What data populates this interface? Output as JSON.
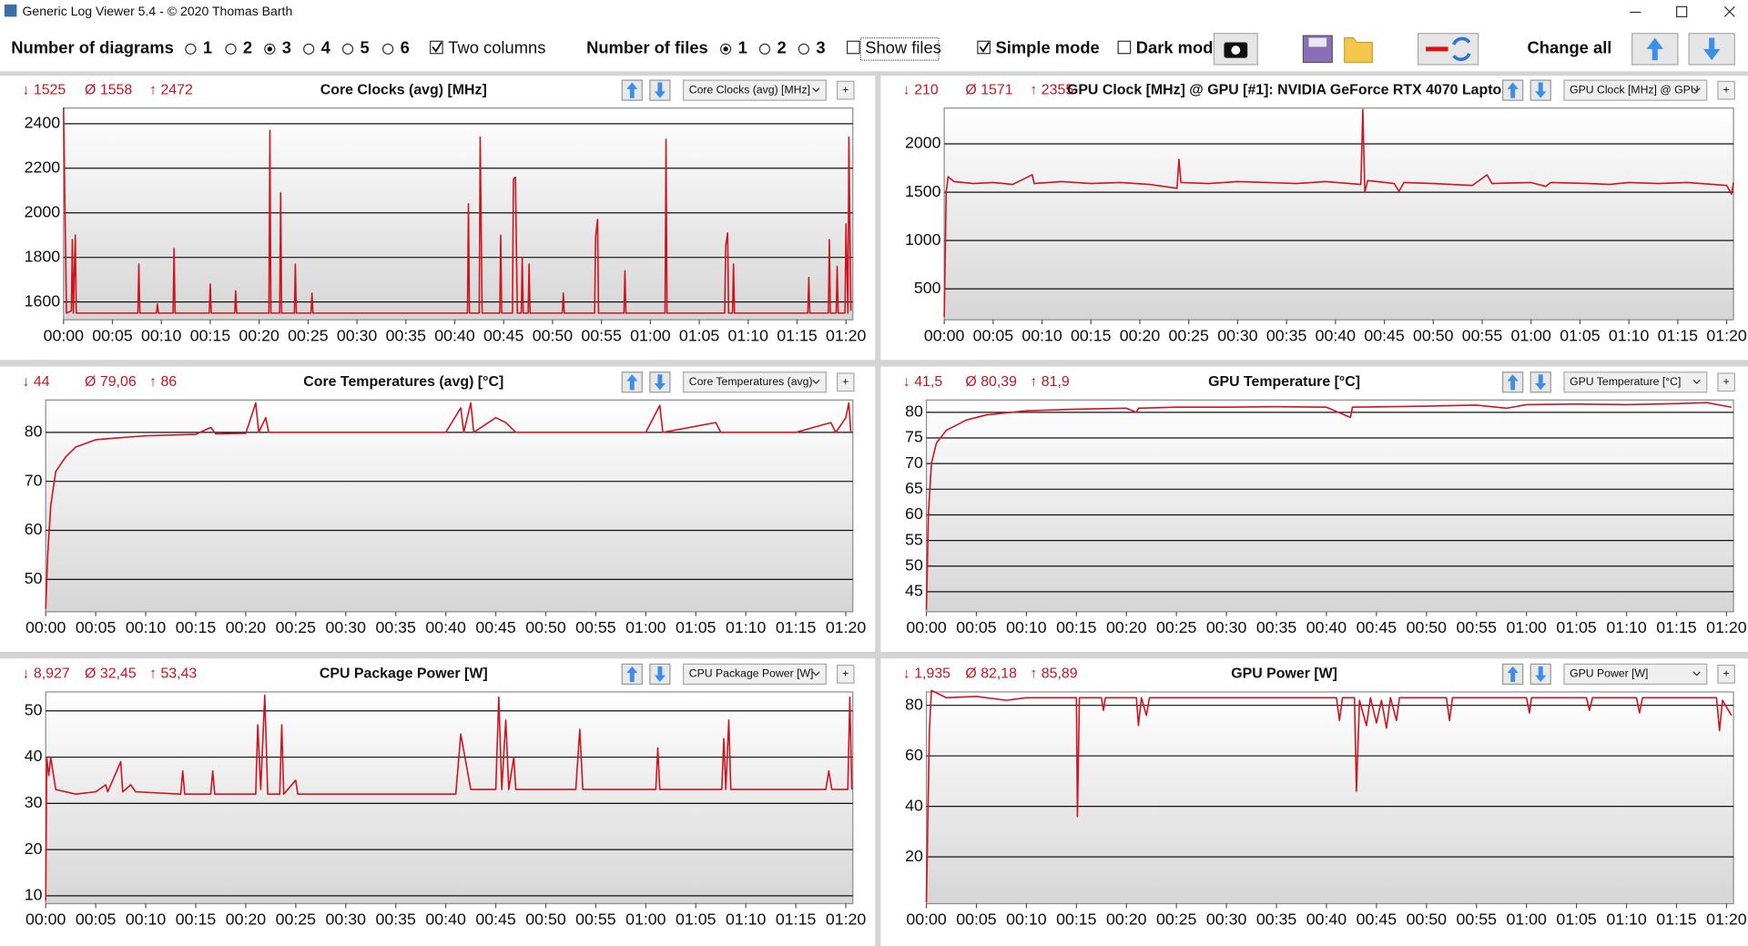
{
  "window": {
    "title": "Generic Log Viewer 5.4 - © 2020 Thomas Barth"
  },
  "toolbar": {
    "diagrams_label": "Number of diagrams",
    "diagram_options": [
      "1",
      "2",
      "3",
      "4",
      "5",
      "6"
    ],
    "two_columns": "Two columns",
    "files_label": "Number of files",
    "file_options": [
      "1",
      "2",
      "3"
    ],
    "show_files": "Show files",
    "simple_mode": "Simple mode",
    "dark_mode": "Dark mod",
    "change_all": "Change all"
  },
  "chart_data": [
    {
      "type": "line",
      "stats": [
        "↓ 1525",
        "Ø 1558",
        "↑ 2472"
      ],
      "title": "Core Clocks (avg) [MHz]",
      "selector": "Core Clocks (avg) [MHz]",
      "add_button": "+",
      "color": "#d0141e",
      "grid": true,
      "x": [
        0,
        0.3,
        0.8,
        0.9,
        1.0,
        1.2,
        1.3,
        7.6,
        7.7,
        7.8,
        9.5,
        9.6,
        9.7,
        11.2,
        11.3,
        11.4,
        14.9,
        15.0,
        15.1,
        17.5,
        17.6,
        17.7,
        21.0,
        21.1,
        21.2,
        22.1,
        22.2,
        22.3,
        23.6,
        23.7,
        23.8,
        25.3,
        25.4,
        25.5,
        41.3,
        41.4,
        41.5,
        42.5,
        42.6,
        42.8,
        44.6,
        44.7,
        44.8,
        45.9,
        46.0,
        46.2,
        46.4,
        46.8,
        46.9,
        47.0,
        47.5,
        47.6,
        47.7,
        51.0,
        51.1,
        51.2,
        54.3,
        54.4,
        54.6,
        54.7,
        57.3,
        57.4,
        57.5,
        61.5,
        61.6,
        61.7,
        67.6,
        67.7,
        67.9,
        68.0,
        68.4,
        68.5,
        68.6,
        76.1,
        76.2,
        76.3,
        78.2,
        78.3,
        78.4,
        79.0,
        79.1,
        79.2,
        79.9,
        80.0,
        80.2,
        80.3,
        80.5
      ],
      "values": [
        2472,
        1550,
        1560,
        1880,
        1550,
        1900,
        1550,
        1550,
        1770,
        1550,
        1550,
        1590,
        1550,
        1550,
        1840,
        1550,
        1550,
        1680,
        1550,
        1550,
        1650,
        1550,
        1550,
        2370,
        1550,
        1550,
        2090,
        1550,
        1550,
        1770,
        1550,
        1550,
        1640,
        1550,
        1550,
        2040,
        1550,
        1550,
        2340,
        1550,
        1550,
        1900,
        1550,
        1550,
        2150,
        2160,
        1550,
        1550,
        1800,
        1550,
        1550,
        1770,
        1550,
        1550,
        1640,
        1550,
        1550,
        1890,
        1970,
        1550,
        1550,
        1740,
        1550,
        1550,
        2330,
        1550,
        1550,
        1850,
        1910,
        1550,
        1550,
        1770,
        1550,
        1550,
        1710,
        1550,
        1550,
        1880,
        1550,
        1550,
        1760,
        1550,
        1550,
        1950,
        1550,
        2340,
        1560
      ],
      "xlim": [
        0,
        80.7
      ],
      "ylim": [
        1520,
        2470
      ],
      "yticks": [
        1600,
        1800,
        2000,
        2200,
        2400
      ],
      "xticks": [
        {
          "value": 0,
          "label": "00:00"
        },
        {
          "value": 5,
          "label": "00:05"
        },
        {
          "value": 10,
          "label": "00:10"
        },
        {
          "value": 15,
          "label": "00:15"
        },
        {
          "value": 20,
          "label": "00:20"
        },
        {
          "value": 25,
          "label": "00:25"
        },
        {
          "value": 30,
          "label": "00:30"
        },
        {
          "value": 35,
          "label": "00:35"
        },
        {
          "value": 40,
          "label": "00:40"
        },
        {
          "value": 45,
          "label": "00:45"
        },
        {
          "value": 50,
          "label": "00:50"
        },
        {
          "value": 55,
          "label": "00:55"
        },
        {
          "value": 60,
          "label": "01:00"
        },
        {
          "value": 65,
          "label": "01:05"
        },
        {
          "value": 70,
          "label": "01:10"
        },
        {
          "value": 75,
          "label": "01:15"
        },
        {
          "value": 80,
          "label": "01:20"
        }
      ]
    },
    {
      "type": "line",
      "stats": [
        "↓ 210",
        "Ø 1571",
        "↑ 2355"
      ],
      "title": "GPU Clock [MHz] @ GPU [#1]: NVIDIA GeForce RTX 4070 Lapto",
      "selector": "GPU Clock [MHz] @ GPU",
      "add_button": "+",
      "color": "#d0141e",
      "grid": true,
      "x": [
        0,
        0.2,
        0.4,
        1,
        3,
        5,
        7,
        9,
        9.2,
        12,
        15,
        18,
        21,
        23.8,
        24,
        24.2,
        27,
        30,
        33,
        36,
        39,
        42.6,
        42.8,
        43.0,
        43.3,
        46,
        46.5,
        47,
        50,
        54,
        55.5,
        56,
        60,
        61.5,
        62,
        66,
        68,
        70,
        73,
        76,
        80,
        80.5,
        80.7
      ],
      "values": [
        210,
        1500,
        1660,
        1610,
        1590,
        1600,
        1580,
        1680,
        1590,
        1610,
        1590,
        1600,
        1580,
        1540,
        1840,
        1600,
        1590,
        1610,
        1600,
        1590,
        1610,
        1580,
        2355,
        1500,
        1620,
        1590,
        1510,
        1600,
        1590,
        1570,
        1680,
        1590,
        1600,
        1560,
        1600,
        1590,
        1580,
        1600,
        1590,
        1600,
        1570,
        1480,
        1600
      ],
      "xlim": [
        0,
        80.7
      ],
      "ylim": [
        180,
        2370
      ],
      "yticks": [
        500,
        1000,
        1500,
        2000
      ],
      "xticks": [
        {
          "value": 0,
          "label": "00:00"
        },
        {
          "value": 5,
          "label": "00:05"
        },
        {
          "value": 10,
          "label": "00:10"
        },
        {
          "value": 15,
          "label": "00:15"
        },
        {
          "value": 20,
          "label": "00:20"
        },
        {
          "value": 25,
          "label": "00:25"
        },
        {
          "value": 30,
          "label": "00:30"
        },
        {
          "value": 35,
          "label": "00:35"
        },
        {
          "value": 40,
          "label": "00:40"
        },
        {
          "value": 45,
          "label": "00:45"
        },
        {
          "value": 50,
          "label": "00:50"
        },
        {
          "value": 55,
          "label": "00:55"
        },
        {
          "value": 60,
          "label": "01:00"
        },
        {
          "value": 65,
          "label": "01:05"
        },
        {
          "value": 70,
          "label": "01:10"
        },
        {
          "value": 75,
          "label": "01:15"
        },
        {
          "value": 80,
          "label": "01:20"
        }
      ]
    },
    {
      "type": "line",
      "stats": [
        "↓ 44",
        "Ø 79,06",
        "↑ 86"
      ],
      "title": "Core Temperatures (avg) [°C]",
      "selector": "Core Temperatures (avg)",
      "add_button": "+",
      "color": "#d0141e",
      "grid": true,
      "x": [
        0,
        0.2,
        0.5,
        1,
        2,
        3,
        5,
        8,
        10,
        15,
        16.5,
        17,
        20,
        21,
        21.3,
        22,
        22.3,
        30,
        40,
        41.5,
        41.8,
        42.5,
        42.8,
        45,
        46,
        47,
        52,
        60,
        61.4,
        61.7,
        67,
        67.5,
        75,
        78.5,
        79,
        80,
        80.3,
        80.5
      ],
      "values": [
        44,
        55,
        65,
        72,
        75,
        77,
        78.5,
        79,
        79.3,
        79.6,
        81,
        79.7,
        79.8,
        86,
        80,
        83,
        80,
        80,
        80,
        85,
        80,
        86,
        80,
        83,
        82,
        80,
        80,
        80,
        85.5,
        80,
        82,
        80,
        80,
        82,
        80,
        83,
        86,
        80
      ],
      "xlim": [
        0,
        80.7
      ],
      "ylim": [
        43.4,
        86.6
      ],
      "yticks": [
        50,
        60,
        70,
        80
      ],
      "xticks": [
        {
          "value": 0,
          "label": "00:00"
        },
        {
          "value": 5,
          "label": "00:05"
        },
        {
          "value": 10,
          "label": "00:10"
        },
        {
          "value": 15,
          "label": "00:15"
        },
        {
          "value": 20,
          "label": "00:20"
        },
        {
          "value": 25,
          "label": "00:25"
        },
        {
          "value": 30,
          "label": "00:30"
        },
        {
          "value": 35,
          "label": "00:35"
        },
        {
          "value": 40,
          "label": "00:40"
        },
        {
          "value": 45,
          "label": "00:45"
        },
        {
          "value": 50,
          "label": "00:50"
        },
        {
          "value": 55,
          "label": "00:55"
        },
        {
          "value": 60,
          "label": "01:00"
        },
        {
          "value": 65,
          "label": "01:05"
        },
        {
          "value": 70,
          "label": "01:10"
        },
        {
          "value": 75,
          "label": "01:15"
        },
        {
          "value": 80,
          "label": "01:20"
        }
      ]
    },
    {
      "type": "line",
      "stats": [
        "↓ 41,5",
        "Ø 80,39",
        "↑ 81,9"
      ],
      "title": "GPU Temperature [°C]",
      "selector": "GPU Temperature [°C]",
      "add_button": "+",
      "color": "#d0141e",
      "grid": true,
      "x": [
        0,
        0.2,
        0.5,
        1,
        2,
        4,
        6,
        10,
        15,
        20,
        21,
        21.2,
        25,
        30,
        35,
        40,
        42.4,
        42.6,
        50,
        55,
        58,
        60,
        65,
        70,
        75,
        78,
        80.5
      ],
      "values": [
        41.5,
        60,
        70,
        74,
        76.5,
        78.5,
        79.5,
        80.3,
        80.6,
        80.8,
        80,
        80.8,
        81,
        81,
        81.1,
        81,
        79,
        81,
        81.2,
        81.4,
        80.8,
        81.5,
        81.6,
        81.5,
        81.7,
        81.9,
        81
      ],
      "xlim": [
        0,
        80.7
      ],
      "ylim": [
        41.1,
        82.4
      ],
      "yticks": [
        45,
        50,
        55,
        60,
        65,
        70,
        75,
        80
      ],
      "xticks": [
        {
          "value": 0,
          "label": "00:00"
        },
        {
          "value": 5,
          "label": "00:05"
        },
        {
          "value": 10,
          "label": "00:10"
        },
        {
          "value": 15,
          "label": "00:15"
        },
        {
          "value": 20,
          "label": "00:20"
        },
        {
          "value": 25,
          "label": "00:25"
        },
        {
          "value": 30,
          "label": "00:30"
        },
        {
          "value": 35,
          "label": "00:35"
        },
        {
          "value": 40,
          "label": "00:40"
        },
        {
          "value": 45,
          "label": "00:45"
        },
        {
          "value": 50,
          "label": "00:50"
        },
        {
          "value": 55,
          "label": "00:55"
        },
        {
          "value": 60,
          "label": "01:00"
        },
        {
          "value": 65,
          "label": "01:05"
        },
        {
          "value": 70,
          "label": "01:10"
        },
        {
          "value": 75,
          "label": "01:15"
        },
        {
          "value": 80,
          "label": "01:20"
        }
      ]
    },
    {
      "type": "line",
      "stats": [
        "↓ 8,927",
        "Ø 32,45",
        "↑ 53,43"
      ],
      "title": "CPU Package Power [W]",
      "selector": "CPU Package Power [W]",
      "add_button": "+",
      "color": "#d0141e",
      "grid": true,
      "x": [
        0,
        0.1,
        0.3,
        0.5,
        1,
        3,
        5,
        6,
        6.2,
        7.5,
        7.7,
        8.5,
        9,
        13.5,
        13.7,
        13.9,
        16.5,
        16.7,
        16.9,
        21,
        21.2,
        21.5,
        21.9,
        22.2,
        23.4,
        23.6,
        23.8,
        25,
        25.2,
        35,
        41,
        41.5,
        42.5,
        45,
        45.3,
        45.6,
        46,
        46.3,
        46.8,
        47,
        53,
        53.4,
        53.7,
        61,
        61.2,
        61.4,
        67.6,
        67.8,
        68,
        68.3,
        68.5,
        78,
        78.3,
        78.6,
        80.2,
        80.4,
        80.6
      ],
      "values": [
        8.927,
        40,
        36,
        40,
        33,
        32,
        32.5,
        34,
        32.5,
        39,
        32.5,
        34,
        32.5,
        32,
        37,
        32,
        32,
        37,
        32,
        32,
        47,
        33,
        53.43,
        32,
        32,
        47,
        32,
        35,
        32,
        32,
        32,
        45,
        33,
        33,
        53,
        33,
        48,
        33,
        40,
        33,
        33,
        46,
        33,
        33,
        42,
        33,
        33,
        44,
        33,
        48,
        33,
        33,
        37,
        33,
        33,
        53,
        33
      ],
      "xlim": [
        0,
        80.7
      ],
      "ylim": [
        8.3,
        54.1
      ],
      "yticks": [
        10,
        20,
        30,
        40,
        50
      ],
      "xticks": [
        {
          "value": 0,
          "label": "00:00"
        },
        {
          "value": 5,
          "label": "00:05"
        },
        {
          "value": 10,
          "label": "00:10"
        },
        {
          "value": 15,
          "label": "00:15"
        },
        {
          "value": 20,
          "label": "00:20"
        },
        {
          "value": 25,
          "label": "00:25"
        },
        {
          "value": 30,
          "label": "00:30"
        },
        {
          "value": 35,
          "label": "00:35"
        },
        {
          "value": 40,
          "label": "00:40"
        },
        {
          "value": 45,
          "label": "00:45"
        },
        {
          "value": 50,
          "label": "00:50"
        },
        {
          "value": 55,
          "label": "00:55"
        },
        {
          "value": 60,
          "label": "01:00"
        },
        {
          "value": 65,
          "label": "01:05"
        },
        {
          "value": 70,
          "label": "01:10"
        },
        {
          "value": 75,
          "label": "01:15"
        },
        {
          "value": 80,
          "label": "01:20"
        }
      ]
    },
    {
      "type": "line",
      "stats": [
        "↓ 1,935",
        "Ø 82,18",
        "↑ 85,89"
      ],
      "title": "GPU Power [W]",
      "selector": "GPU Power [W]",
      "add_button": "+",
      "color": "#d0141e",
      "grid": true,
      "x": [
        0,
        0.3,
        0.5,
        2,
        5,
        8,
        10,
        15,
        15.1,
        15.3,
        17.5,
        17.7,
        17.9,
        21,
        21.2,
        21.5,
        22,
        22.3,
        30,
        40,
        41,
        41.3,
        41.6,
        42.8,
        43,
        43.3,
        44,
        44.4,
        45,
        45.5,
        46,
        46.4,
        47,
        47.3,
        52,
        52.3,
        52.6,
        60,
        60.3,
        60.5,
        66,
        66.3,
        66.6,
        71,
        71.3,
        71.6,
        79,
        79.3,
        79.6,
        80.5
      ],
      "values": [
        1.935,
        70,
        85.89,
        83,
        83.5,
        82,
        83,
        83,
        36,
        83,
        83,
        78,
        83,
        83,
        72,
        83,
        76,
        83,
        83,
        83,
        83,
        74,
        83,
        83,
        46,
        82,
        72,
        83,
        73,
        82,
        71,
        83,
        74,
        83,
        83,
        74,
        83,
        83,
        77,
        83,
        83,
        78,
        83,
        83,
        77,
        83,
        83,
        70,
        82,
        76
      ],
      "xlim": [
        0,
        80.7
      ],
      "ylim": [
        1.5,
        85.3
      ],
      "yticks": [
        20,
        40,
        60,
        80
      ],
      "xticks": [
        {
          "value": 0,
          "label": "00:00"
        },
        {
          "value": 5,
          "label": "00:05"
        },
        {
          "value": 10,
          "label": "00:10"
        },
        {
          "value": 15,
          "label": "00:15"
        },
        {
          "value": 20,
          "label": "00:20"
        },
        {
          "value": 25,
          "label": "00:25"
        },
        {
          "value": 30,
          "label": "00:30"
        },
        {
          "value": 35,
          "label": "00:35"
        },
        {
          "value": 40,
          "label": "00:40"
        },
        {
          "value": 45,
          "label": "00:45"
        },
        {
          "value": 50,
          "label": "00:50"
        },
        {
          "value": 55,
          "label": "00:55"
        },
        {
          "value": 60,
          "label": "01:00"
        },
        {
          "value": 65,
          "label": "01:05"
        },
        {
          "value": 70,
          "label": "01:10"
        },
        {
          "value": 75,
          "label": "01:15"
        },
        {
          "value": 80,
          "label": "01:20"
        }
      ]
    }
  ]
}
